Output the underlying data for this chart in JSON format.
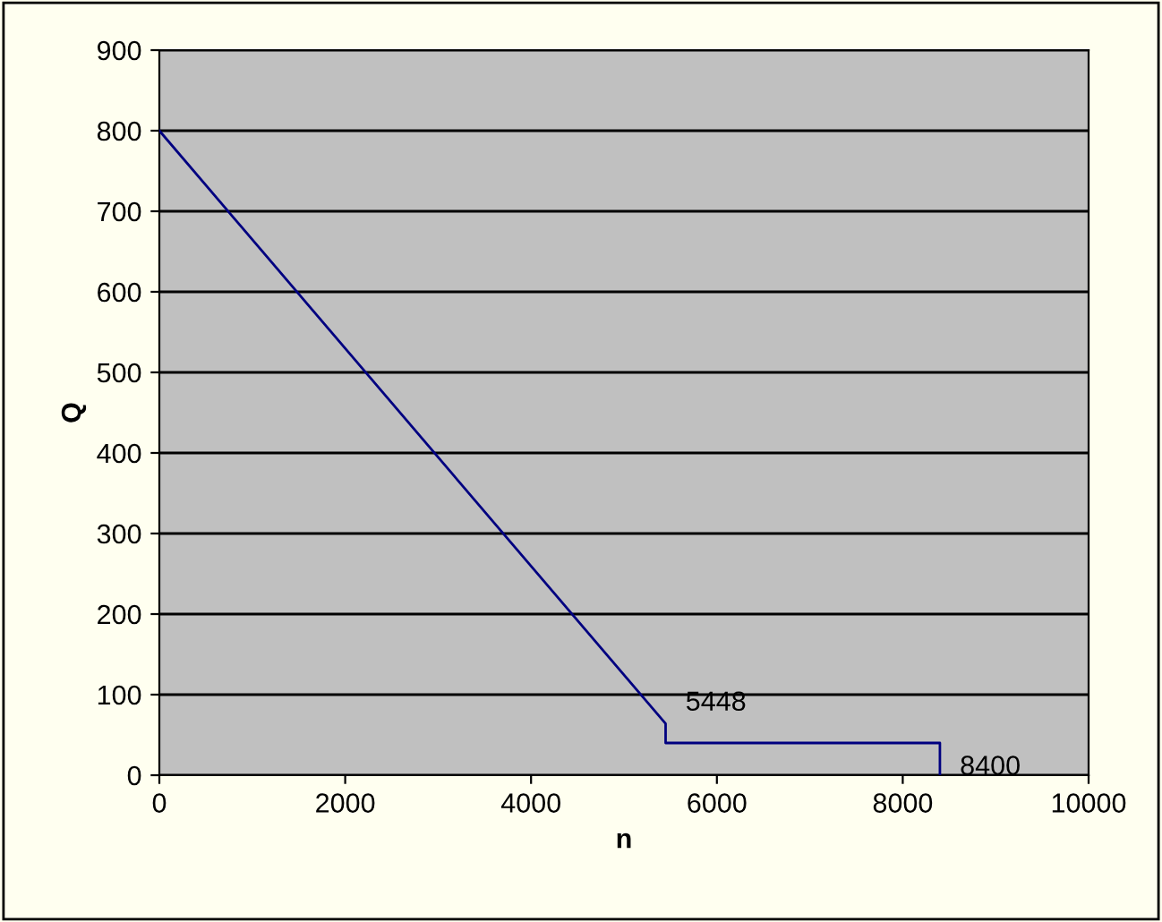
{
  "chart_data": {
    "type": "line",
    "xlabel": "n",
    "ylabel": "Q",
    "series": [
      {
        "color": "#000080",
        "x": [
          0,
          5448,
          5448,
          8400,
          8400
        ],
        "values": [
          800,
          64,
          40,
          40,
          0
        ]
      }
    ],
    "xlim": [
      0,
      10000
    ],
    "xticks": [
      0,
      2000,
      4000,
      6000,
      8000,
      10000
    ],
    "ylim": [
      0,
      900
    ],
    "yticks": [
      0,
      100,
      200,
      300,
      400,
      500,
      600,
      700,
      800,
      900
    ],
    "grid": "y",
    "legend": false,
    "marker": "none",
    "line_style": "solid",
    "annotations": [
      {
        "text": "5448",
        "x": 5448,
        "y": 64
      },
      {
        "text": "8400",
        "x": 8400,
        "y": 0
      }
    ]
  }
}
